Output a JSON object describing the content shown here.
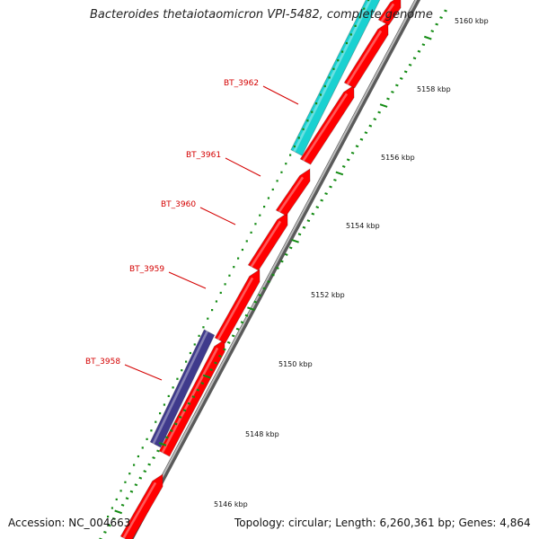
{
  "header": {
    "title": "Bacteroides thetaiotaomicron VPI-5482, complete genome"
  },
  "footer": {
    "accession": "Accession: NC_004663",
    "summary": "Topology: circular; Length: 6,260,361 bp; Genes: 4,864"
  },
  "scale": {
    "unit": "kbp",
    "ticks": [
      {
        "kbp": 5146,
        "label": "5146 kbp"
      },
      {
        "kbp": 5148,
        "label": "5148 kbp"
      },
      {
        "kbp": 5150,
        "label": "5150 kbp"
      },
      {
        "kbp": 5152,
        "label": "5152 kbp"
      },
      {
        "kbp": 5154,
        "label": "5154 kbp"
      },
      {
        "kbp": 5156,
        "label": "5156 kbp"
      },
      {
        "kbp": 5158,
        "label": "5158 kbp"
      },
      {
        "kbp": 5160,
        "label": "5160 kbp"
      }
    ]
  },
  "gene_labels": [
    {
      "name": "BT_3962"
    },
    {
      "name": "BT_3961"
    },
    {
      "name": "BT_3960"
    },
    {
      "name": "BT_3959"
    },
    {
      "name": "BT_3958"
    }
  ],
  "colors": {
    "cds_forward": "#ff0000",
    "cds_cyan": "#19d1d1",
    "cds_purple": "#3f3a8c",
    "backbone": "#9a9a9a",
    "tick_green": "#138b13",
    "label_red": "#d40000"
  }
}
